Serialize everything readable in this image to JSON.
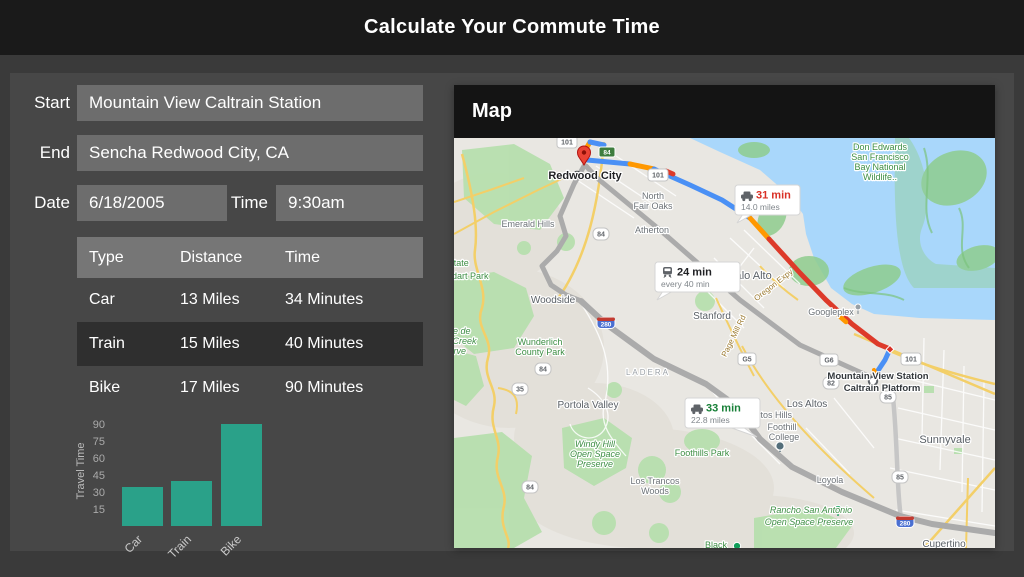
{
  "title": "Calculate Your Commute Time",
  "form": {
    "start_label": "Start",
    "start_value": "Mountain View Caltrain Station",
    "end_label": "End",
    "end_value": "Sencha Redwood City, CA",
    "date_label": "Date",
    "date_value": "6/18/2005",
    "time_label": "Time",
    "time_value": "9:30am"
  },
  "table": {
    "headers": [
      "Type",
      "Distance",
      "Time"
    ],
    "rows": [
      {
        "type": "Car",
        "distance": "13 Miles",
        "time": "34 Minutes"
      },
      {
        "type": "Train",
        "distance": "15 Miles",
        "time": "40 Minutes"
      },
      {
        "type": "Bike",
        "distance": "17 Miles",
        "time": "90 Minutes"
      }
    ]
  },
  "chart_data": {
    "type": "bar",
    "categories": [
      "Car",
      "Train",
      "Bike"
    ],
    "values": [
      34,
      40,
      90
    ],
    "title": "",
    "xlabel": "",
    "ylabel": "Travel Time",
    "yticks": [
      15,
      30,
      45,
      60,
      75,
      90
    ],
    "ylim": [
      0,
      95
    ],
    "grid": false,
    "bar_color": "#2aa189"
  },
  "map": {
    "heading": "Map",
    "destination_label": "Redwood City",
    "origin_label_line1": "Mountain View Station",
    "origin_label_line2": "Caltrain Platform",
    "badges": [
      {
        "icon": "car",
        "time": "31 min",
        "time_color": "#d93025",
        "detail": "14.0 miles"
      },
      {
        "icon": "train",
        "time": "24 min",
        "time_color": "#202124",
        "detail": "every 40 min"
      },
      {
        "icon": "car",
        "time": "33 min",
        "time_color": "#188038",
        "detail": "22.8 miles"
      }
    ],
    "route_colors": {
      "selected": "#4a90f5",
      "slow": "#ff9800",
      "jam": "#dd3a2a",
      "alternate": "#ababab"
    },
    "labels": [
      "Don Edwards",
      "San Francisco",
      "Bay National",
      "Wildlife..",
      "North",
      "Fair Oaks",
      "Atherton",
      "Emerald Hills",
      "Estate",
      "Huddart Park",
      "Woodside",
      "Wunderlich",
      "County Park",
      "El Corte de",
      "Madera Creek",
      "Preserve",
      "Portola Valley",
      "Windy Hill",
      "Open Space",
      "Preserve",
      "Los Trancos",
      "Woods",
      "Foothills Park",
      "LADERA",
      "Stanford",
      "Palo Alto",
      "Googleplex",
      "Page Mill Rd",
      "Oregon Expy",
      "Los Altos",
      "Los Altos Hills",
      "Foothill",
      "College",
      "Loyola",
      "Rancho San Antonio",
      "Open Space Preserve",
      "Black",
      "Cupertino",
      "Sunnyvale"
    ],
    "shields": [
      "101",
      "101",
      "84",
      "84",
      "84",
      "84",
      "35",
      "82",
      "85",
      "85",
      "G5",
      "G6",
      "280",
      "280",
      "101"
    ]
  }
}
